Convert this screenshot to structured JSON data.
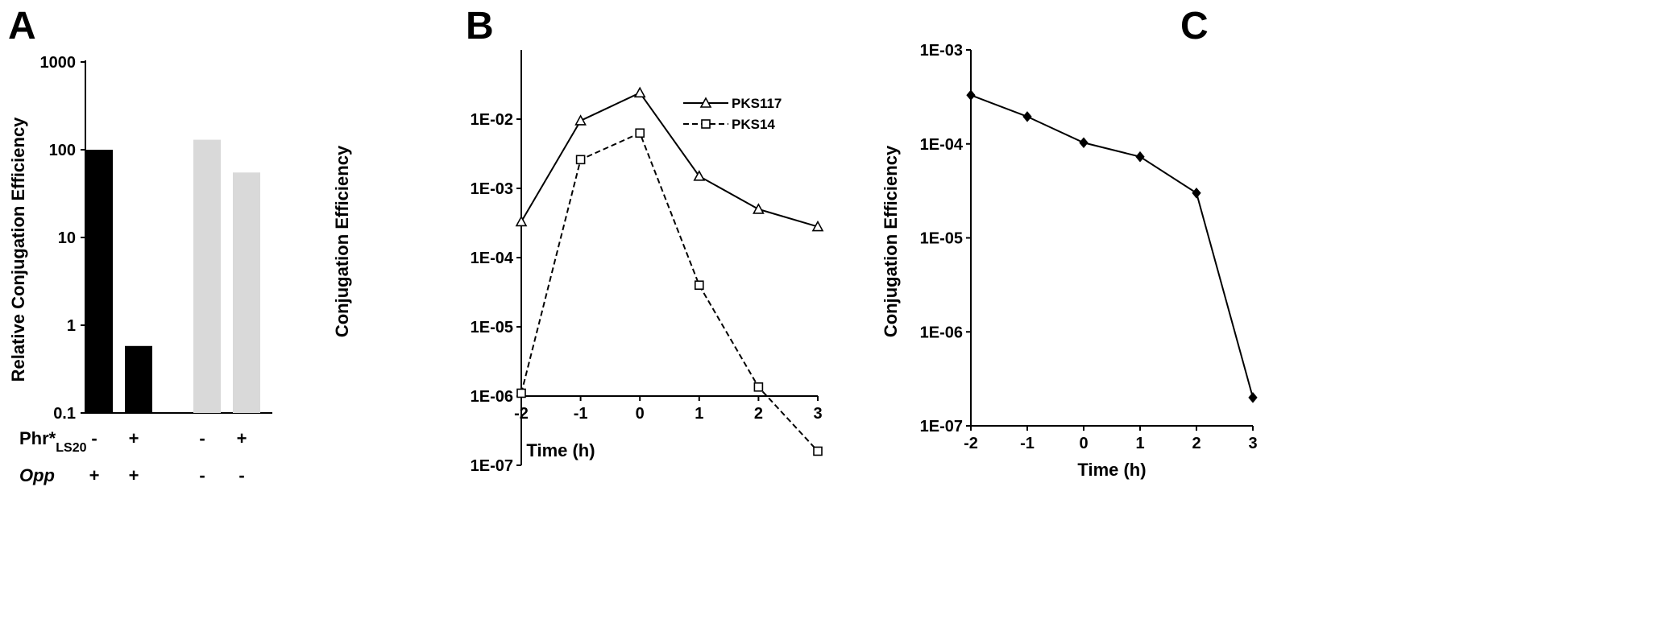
{
  "panels": {
    "A": {
      "letter": "A",
      "row_labels": {
        "phr_main": "Phr*",
        "phr_sub": "LS20",
        "opp": "Opp"
      }
    },
    "B": {
      "letter": "B"
    },
    "C": {
      "letter": "C"
    }
  },
  "chart_data": [
    {
      "panel": "A",
      "type": "bar",
      "title": "",
      "ylabel": "Relative Conjugation Efficiency",
      "xlabel": "",
      "yscale": "log",
      "ylim": [
        0.1,
        1000
      ],
      "ytick_labels": [
        "0.1",
        "1",
        "10",
        "100",
        "1000"
      ],
      "categories": [
        "Phr*LS20 - / Opp +",
        "Phr*LS20 + / Opp +",
        "Phr*LS20 - / Opp -",
        "Phr*LS20 + / Opp -"
      ],
      "values": [
        100,
        0.58,
        130,
        55
      ],
      "bar_colors": [
        "#000000",
        "#000000",
        "#d9d9d9",
        "#d9d9d9"
      ],
      "phr_row": [
        "-",
        "+",
        "-",
        "+"
      ],
      "opp_row": [
        "+",
        "+",
        "-",
        "-"
      ],
      "grid": false
    },
    {
      "panel": "B",
      "type": "line",
      "title": "",
      "xlabel": "Time (h)",
      "ylabel": "Conjugation Efficiency",
      "yscale": "log",
      "ylim": [
        1e-07,
        0.1
      ],
      "xlim": [
        -2,
        3
      ],
      "x": [
        -2,
        -1,
        0,
        1,
        2,
        3
      ],
      "xtick_labels": [
        "-2",
        "-1",
        "0",
        "1",
        "2",
        "3"
      ],
      "ytick_labels": [
        "1E-07",
        "1E-06",
        "1E-05",
        "1E-04",
        "1E-03",
        "1E-02"
      ],
      "x_axis_crosses_at": 1e-06,
      "legend_position": "top-right",
      "series": [
        {
          "name": "PKS117",
          "marker": "triangle",
          "dash": "solid",
          "values": [
            0.00033,
            0.0095,
            0.024,
            0.0015,
            0.0005,
            0.00028
          ]
        },
        {
          "name": "PKS14",
          "marker": "square",
          "dash": "dashed",
          "values": [
            1.1e-06,
            0.0026,
            0.0063,
            4e-05,
            1.35e-06,
            1.6e-07
          ]
        }
      ],
      "grid": false
    },
    {
      "panel": "C",
      "type": "line",
      "title": "",
      "xlabel": "Time (h)",
      "ylabel": "Conjugation Efficiency",
      "yscale": "log",
      "ylim": [
        1e-07,
        0.001
      ],
      "xlim": [
        -2,
        3
      ],
      "x": [
        -2,
        -1,
        0,
        1,
        2,
        3
      ],
      "xtick_labels": [
        "-2",
        "-1",
        "0",
        "1",
        "2",
        "3"
      ],
      "ytick_labels": [
        "1E-07",
        "1E-06",
        "1E-05",
        "1E-04",
        "1E-03"
      ],
      "series": [
        {
          "name": "",
          "marker": "diamond",
          "dash": "solid",
          "values": [
            0.00033,
            0.000195,
            0.000103,
            7.3e-05,
            3e-05,
            2e-07
          ]
        }
      ],
      "grid": false
    }
  ]
}
